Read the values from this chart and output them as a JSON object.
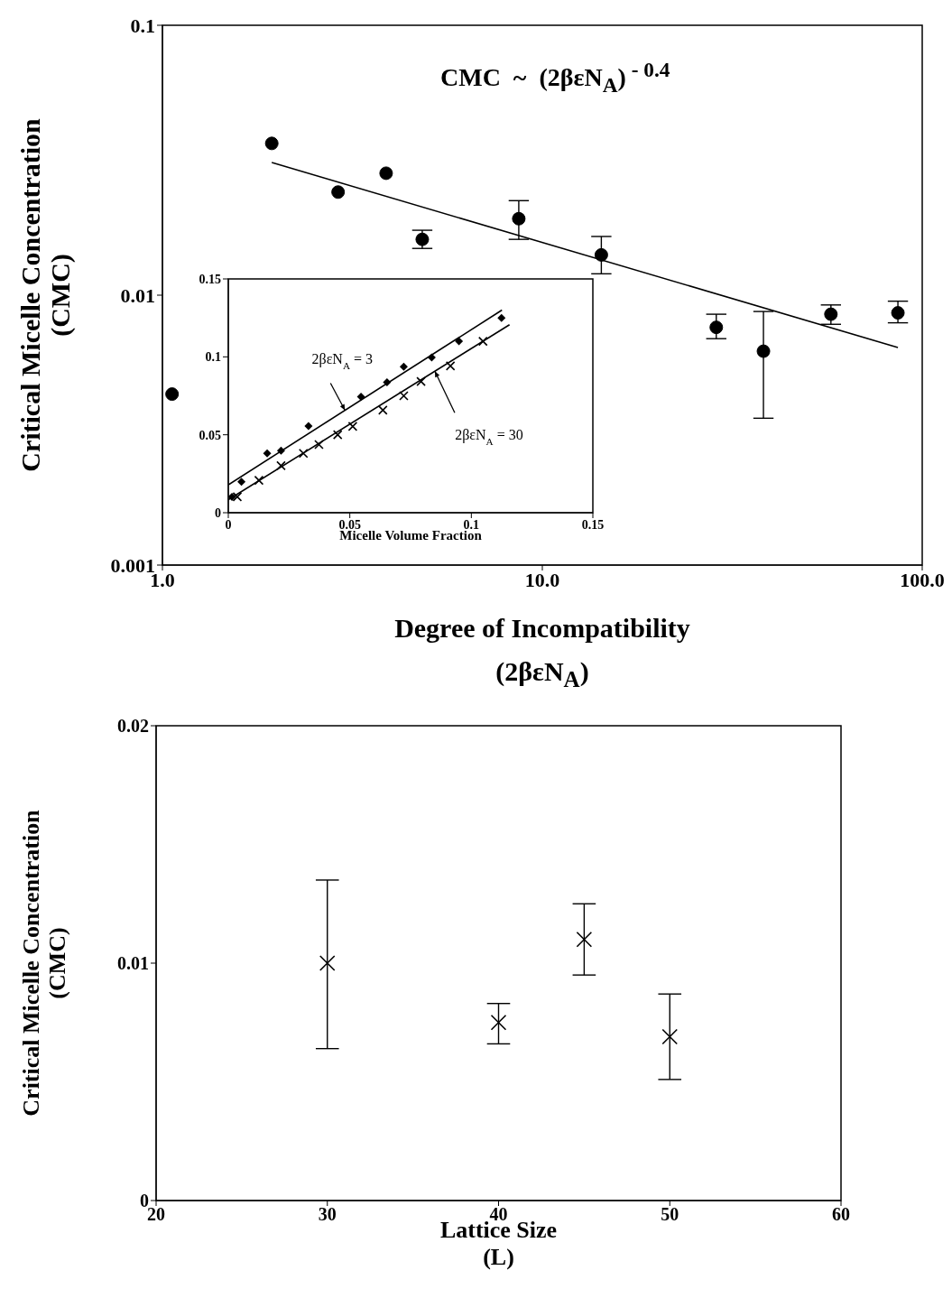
{
  "chart_data": [
    {
      "type": "scatter",
      "log": "xy",
      "xlabel": "Degree of Incompatibility\n(2βεN$_{A}$)",
      "ylabel": "Critical Micelle Concentration\n(CMC)",
      "annotations": [
        "CMC  ~  (2βεN$_{A}$)$^{ - 0.4}$"
      ],
      "xlim": [
        1,
        100
      ],
      "ylim": [
        0.001,
        0.1
      ],
      "xticks": [
        {
          "value": 1,
          "label": "1.0"
        },
        {
          "value": 10,
          "label": "10.0"
        },
        {
          "value": 100,
          "label": "100.0"
        }
      ],
      "yticks": [
        0.001,
        0.01,
        0.1
      ],
      "series": [
        {
          "type": "scatter",
          "marker": "circle",
          "color": "#000000",
          "x": [
            1.06,
            1.94,
            2.9,
            3.88,
            4.83,
            8.67,
            14.3,
            28.7,
            38.2,
            57.5,
            86.3
          ],
          "values": [
            0.0043,
            0.0365,
            0.0241,
            0.0283,
            0.0161,
            0.0192,
            0.0141,
            0.0076,
            0.0062,
            0.0085,
            0.0086
          ],
          "errors": [
            null,
            null,
            null,
            null,
            [
              0.0149,
              0.0174
            ],
            [
              0.0161,
              0.0224
            ],
            [
              0.012,
              0.0165
            ],
            [
              0.0069,
              0.0085
            ],
            [
              0.0035,
              0.0087
            ],
            [
              0.0078,
              0.0092
            ],
            [
              0.0079,
              0.0095
            ]
          ]
        },
        {
          "type": "line",
          "color": "#000000",
          "x": [
            1.94,
            86.3
          ],
          "values": [
            0.031,
            0.0064
          ]
        }
      ]
    },
    {
      "type": "scatter",
      "xlabel": "Micelle Volume Fraction",
      "annotations": [
        {
          "text": "2βεN$_{A}$ = 3",
          "x": 0.048,
          "y": 0.0657
        },
        {
          "text": "2βεN$_{A}$ = 30",
          "x": 0.085,
          "y": 0.0908
        }
      ],
      "xlim": [
        0,
        0.15
      ],
      "ylim": [
        0,
        0.15
      ],
      "xticks": [
        0,
        0.05,
        0.1,
        0.15
      ],
      "yticks": [
        0,
        0.05,
        0.1,
        0.15
      ],
      "series": [
        {
          "type": "scatter",
          "marker": "diamond",
          "color": "#000000",
          "x": [
            0.0015,
            0.0054,
            0.016,
            0.0217,
            0.033,
            0.0546,
            0.0653,
            0.0722,
            0.0837,
            0.0949,
            0.1124
          ],
          "values": [
            0.0102,
            0.0198,
            0.0381,
            0.0398,
            0.0556,
            0.0744,
            0.0837,
            0.0937,
            0.0996,
            0.11,
            0.125
          ]
        },
        {
          "type": "scatter",
          "marker": "cross",
          "color": "#000000",
          "x": [
            0.0037,
            0.0126,
            0.0217,
            0.0309,
            0.0373,
            0.045,
            0.0512,
            0.0636,
            0.0722,
            0.0793,
            0.0914,
            0.1048
          ],
          "values": [
            0.0102,
            0.0208,
            0.0302,
            0.0381,
            0.0437,
            0.05,
            0.0554,
            0.0658,
            0.075,
            0.0842,
            0.0942,
            0.11
          ]
        },
        {
          "type": "line",
          "color": "#000000",
          "x": [
            0,
            0.1126
          ],
          "values": [
            0.0179,
            0.13
          ]
        },
        {
          "type": "line",
          "color": "#000000",
          "x": [
            0,
            0.1157
          ],
          "values": [
            0.0083,
            0.1206
          ]
        }
      ]
    },
    {
      "type": "scatter",
      "xlabel": "Lattice Size\n(L)",
      "ylabel": "Critical Micelle Concentration\n(CMC)",
      "xlim": [
        20,
        60
      ],
      "ylim": [
        0,
        0.02
      ],
      "xticks": [
        20,
        30,
        40,
        50,
        60
      ],
      "yticks": [
        0,
        0.01,
        0.02
      ],
      "marker": "cross",
      "color": "#000000",
      "x": [
        30,
        40,
        45,
        50
      ],
      "values": [
        0.01,
        0.0075,
        0.011,
        0.0069
      ],
      "errors": [
        [
          0.0064,
          0.0135
        ],
        [
          0.0066,
          0.0083
        ],
        [
          0.0095,
          0.0125
        ],
        [
          0.0051,
          0.0087
        ]
      ]
    }
  ]
}
